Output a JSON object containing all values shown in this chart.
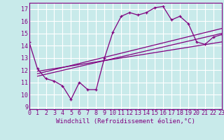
{
  "bg_color": "#c8eaea",
  "line_color": "#800080",
  "grid_color": "#ffffff",
  "xlabel": "Windchill (Refroidissement éolien,°C)",
  "xlim": [
    0,
    23
  ],
  "ylim": [
    8.8,
    17.5
  ],
  "xticks": [
    0,
    1,
    2,
    3,
    4,
    5,
    6,
    7,
    8,
    9,
    10,
    11,
    12,
    13,
    14,
    15,
    16,
    17,
    18,
    19,
    20,
    21,
    22,
    23
  ],
  "yticks": [
    9,
    10,
    11,
    12,
    13,
    14,
    15,
    16,
    17
  ],
  "series1_x": [
    0,
    1,
    2,
    3,
    4,
    5,
    6,
    7,
    8,
    9,
    10,
    11,
    12,
    13,
    14,
    15,
    16,
    17,
    18,
    19,
    20,
    21,
    22,
    23
  ],
  "series1_y": [
    14.3,
    12.1,
    11.3,
    11.1,
    10.7,
    9.6,
    11.0,
    10.4,
    10.4,
    13.0,
    15.1,
    16.4,
    16.7,
    16.5,
    16.7,
    17.1,
    17.2,
    16.1,
    16.4,
    15.8,
    14.3,
    14.1,
    14.7,
    14.9
  ],
  "trend1_x": [
    1,
    23
  ],
  "trend1_y": [
    11.5,
    15.0
  ],
  "trend2_x": [
    1,
    23
  ],
  "trend2_y": [
    11.7,
    15.4
  ],
  "trend3_x": [
    1,
    23
  ],
  "trend3_y": [
    11.9,
    14.3
  ],
  "tick_fontsize": 6.0,
  "xlabel_fontsize": 6.5
}
